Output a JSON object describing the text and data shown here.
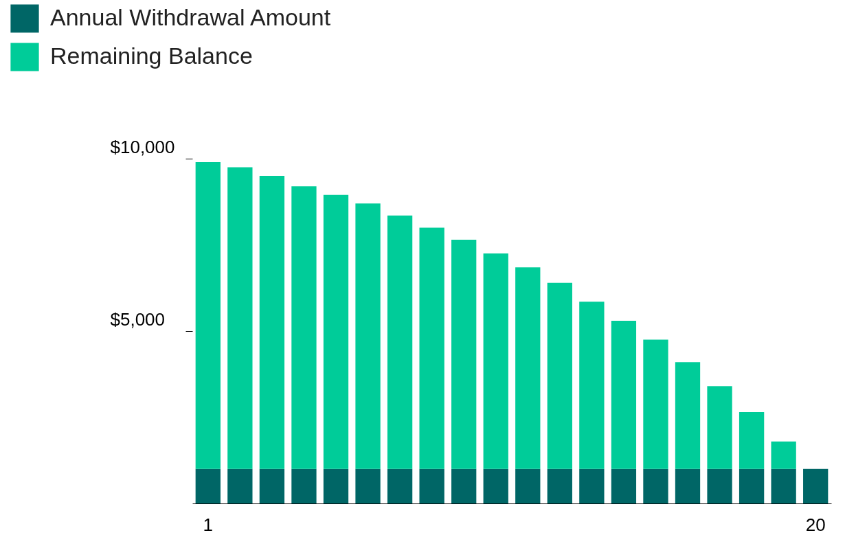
{
  "chart_data": {
    "type": "bar",
    "stacked": true,
    "categories": [
      "1",
      null,
      null,
      null,
      null,
      null,
      null,
      null,
      null,
      null,
      null,
      null,
      null,
      null,
      null,
      null,
      null,
      null,
      null,
      "20"
    ],
    "series": [
      {
        "name": "Annual Withdrawal Amount",
        "color": "#006666",
        "values": [
          1000,
          1000,
          1000,
          1000,
          1000,
          1000,
          1000,
          1000,
          1000,
          1000,
          1000,
          1000,
          1000,
          1000,
          1000,
          1000,
          1000,
          1000,
          1000,
          1000
        ]
      },
      {
        "name": "Remaining Balance",
        "color": "#00cc99",
        "values": [
          8900,
          8750,
          8500,
          8200,
          7950,
          7700,
          7350,
          7000,
          6650,
          6250,
          5850,
          5400,
          4850,
          4300,
          3750,
          3100,
          2400,
          1650,
          800,
          0
        ]
      }
    ],
    "ylim": [
      0,
      10000
    ],
    "yticks": [
      {
        "value": 5000,
        "label": "$5,000"
      },
      {
        "value": 10000,
        "label": "$10,000"
      }
    ],
    "legend": "top left",
    "grid": false
  }
}
